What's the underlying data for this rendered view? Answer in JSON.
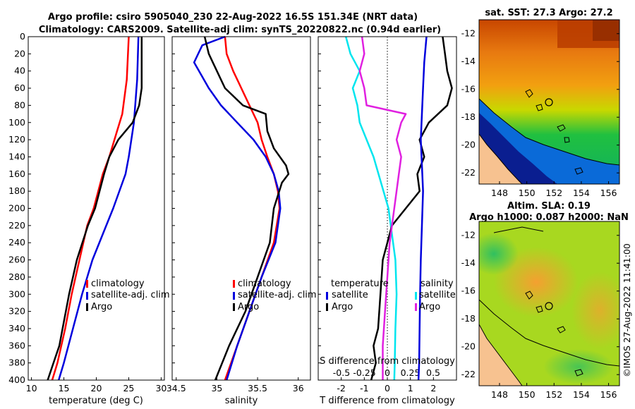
{
  "titles": {
    "line1": "Argo profile: csiro 5905040_230 22-Aug-2022 16.5S 151.34E (NRT data)",
    "line2": "Climatology: CARS2009. Satellite-adj clim: synTS_20220822.nc (0.94d earlier)",
    "sst_map": "sat. SST: 27.3 Argo: 27.2",
    "sla_map_1": "Altim. SLA: 0.19",
    "sla_map_2": "Argo h1000: 0.087 h2000: NaN",
    "watermark": "©IMOS 27-Aug-2022 11:41:00"
  },
  "colors": {
    "climatology": "#ff0000",
    "satellite": "#0000dd",
    "argo": "#000000",
    "t_sat": "#00e5ee",
    "s_sat": "#0000dd",
    "t_argo": "#000000",
    "s_argo": "#e020e0"
  },
  "chart_data": [
    {
      "type": "line",
      "id": "temperature",
      "xlabel": "temperature (deg C)",
      "ylabel": "",
      "xlim": [
        9.5,
        30.5
      ],
      "ylim": [
        400,
        0
      ],
      "xticks": [
        10,
        15,
        20,
        25,
        30
      ],
      "yticks": [
        0,
        20,
        40,
        60,
        80,
        100,
        120,
        140,
        160,
        180,
        200,
        220,
        240,
        260,
        280,
        300,
        320,
        340,
        360,
        380,
        400
      ],
      "legend": [
        "climatology",
        "satellite-adj. clim",
        "Argo"
      ],
      "series": [
        {
          "name": "climatology",
          "depth": [
            0,
            50,
            90,
            110,
            140,
            160,
            200,
            220,
            260,
            300,
            340,
            380,
            400
          ],
          "values": [
            25.0,
            24.7,
            24.0,
            23.2,
            22.0,
            21.0,
            19.6,
            18.6,
            17.4,
            16.2,
            15.2,
            14.0,
            13.2
          ]
        },
        {
          "name": "satellite-adj. clim",
          "depth": [
            0,
            50,
            100,
            140,
            160,
            200,
            230,
            260,
            300,
            340,
            380,
            400
          ],
          "values": [
            26.5,
            26.3,
            25.8,
            25.0,
            24.5,
            22.6,
            21.0,
            19.4,
            17.8,
            16.4,
            15.0,
            14.2
          ]
        },
        {
          "name": "Argo",
          "depth": [
            0,
            60,
            80,
            100,
            120,
            140,
            160,
            200,
            220,
            260,
            300,
            340,
            360,
            380,
            400
          ],
          "values": [
            27.0,
            27.0,
            26.6,
            25.6,
            23.4,
            22.0,
            21.2,
            19.8,
            18.7,
            17.0,
            15.8,
            14.8,
            14.3,
            13.4,
            12.5
          ]
        }
      ]
    },
    {
      "type": "line",
      "id": "salinity",
      "xlabel": "salinity",
      "xlim": [
        34.45,
        36.15
      ],
      "ylim": [
        400,
        0
      ],
      "xticks": [
        34.5,
        35,
        35.5,
        36
      ],
      "xtick_labels": [
        "34.5",
        "35",
        "35.5",
        "36"
      ],
      "legend": [
        "climatology",
        "satellite-adj. clim",
        "Argo"
      ],
      "series": [
        {
          "name": "climatology",
          "depth": [
            0,
            20,
            40,
            60,
            80,
            100,
            120,
            140,
            160,
            180,
            200,
            240,
            280,
            320,
            360,
            400
          ],
          "values": [
            35.1,
            35.12,
            35.2,
            35.3,
            35.4,
            35.5,
            35.55,
            35.62,
            35.7,
            35.75,
            35.77,
            35.7,
            35.55,
            35.4,
            35.25,
            35.1
          ]
        },
        {
          "name": "satellite-adj. clim",
          "depth": [
            0,
            10,
            30,
            60,
            80,
            100,
            120,
            140,
            160,
            180,
            200,
            240,
            280,
            320,
            360,
            400
          ],
          "values": [
            35.1,
            34.82,
            34.72,
            34.9,
            35.05,
            35.25,
            35.45,
            35.6,
            35.7,
            35.76,
            35.78,
            35.72,
            35.55,
            35.4,
            35.25,
            35.12
          ]
        },
        {
          "name": "Argo",
          "depth": [
            0,
            20,
            40,
            60,
            80,
            90,
            110,
            130,
            150,
            160,
            170,
            200,
            240,
            280,
            320,
            360,
            400
          ],
          "values": [
            34.85,
            34.9,
            35.0,
            35.1,
            35.32,
            35.6,
            35.62,
            35.7,
            35.85,
            35.88,
            35.8,
            35.7,
            35.65,
            35.5,
            35.35,
            35.15,
            34.98
          ]
        }
      ]
    },
    {
      "type": "line",
      "id": "differences",
      "xlabel": "T difference from climatology",
      "x2label": "S difference from climatology",
      "xlim": [
        -3,
        3
      ],
      "ylim": [
        400,
        0
      ],
      "xticks": [
        -2,
        -1,
        0,
        1,
        2
      ],
      "xtick_labels": [
        "-2",
        "-1",
        "0",
        "1",
        "2"
      ],
      "x2ticks": [
        -0.5,
        -0.25,
        0,
        0.25,
        0.5
      ],
      "x2tick_labels": [
        "-0.5",
        "-0.25",
        "0",
        "0.25",
        "0.5"
      ],
      "legend_t": {
        "title": "temperature",
        "items": [
          "satellite",
          "Argo"
        ]
      },
      "legend_s": {
        "title": "salinity",
        "items": [
          "satellite",
          "Argo"
        ]
      },
      "series": [
        {
          "name": "T satellite",
          "depth": [
            0,
            20,
            40,
            60,
            80,
            100,
            140,
            200,
            260,
            300,
            340,
            380,
            400
          ],
          "values": [
            -1.8,
            -1.6,
            -1.2,
            -1.5,
            -1.3,
            -1.2,
            -0.6,
            0.05,
            0.35,
            0.4,
            0.35,
            0.32,
            0.3
          ]
        },
        {
          "name": "T Argo",
          "depth": [
            0,
            20,
            40,
            60,
            80,
            100,
            120,
            140,
            160,
            180,
            220,
            260,
            300,
            340,
            360,
            380,
            400
          ],
          "values": [
            2.4,
            2.5,
            2.6,
            2.8,
            2.6,
            1.8,
            1.4,
            1.6,
            1.3,
            1.4,
            0.2,
            -0.2,
            -0.3,
            -0.4,
            -0.6,
            -0.5,
            -0.7
          ]
        },
        {
          "name": "S satellite",
          "depth": [
            0,
            30,
            60,
            90,
            120,
            150,
            180,
            220,
            260,
            300,
            340,
            380,
            400
          ],
          "values": [
            1.7,
            1.6,
            1.55,
            1.5,
            1.45,
            1.5,
            1.55,
            1.5,
            1.45,
            1.42,
            1.4,
            1.38,
            1.35
          ]
        },
        {
          "name": "S Argo",
          "depth": [
            0,
            20,
            40,
            60,
            80,
            90,
            100,
            120,
            140,
            160,
            200,
            240,
            280,
            320,
            360,
            400
          ],
          "values": [
            -1.1,
            -1.0,
            -1.2,
            -1.0,
            -0.9,
            0.8,
            0.6,
            0.4,
            0.6,
            0.5,
            0.3,
            0.1,
            0.0,
            -0.1,
            -0.2,
            -0.2
          ]
        }
      ]
    },
    {
      "type": "heatmap",
      "id": "sst_map",
      "xlim": [
        146.5,
        156.8
      ],
      "ylim": [
        -22.8,
        -11
      ],
      "xticks": [
        148,
        150,
        152,
        154,
        156
      ],
      "yticks": [
        -12,
        -14,
        -16,
        -18,
        -20,
        -22
      ]
    },
    {
      "type": "heatmap",
      "id": "sla_map",
      "xlim": [
        146.5,
        156.8
      ],
      "ylim": [
        -22.8,
        -11
      ],
      "xticks": [
        148,
        150,
        152,
        154,
        156
      ],
      "yticks": [
        -12,
        -14,
        -16,
        -18,
        -20,
        -22
      ]
    }
  ]
}
